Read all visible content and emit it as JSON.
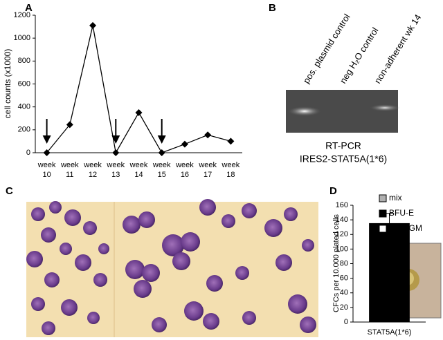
{
  "chart_data": [
    {
      "type": "line",
      "panel_label": "A",
      "y_label": "cell counts (x1000)",
      "x_tick_prefix": "week",
      "categories": [
        "10",
        "11",
        "12",
        "13",
        "14",
        "15",
        "16",
        "17",
        "18"
      ],
      "values": [
        0,
        245,
        1110,
        0,
        350,
        0,
        75,
        155,
        100
      ],
      "color": "#000000",
      "arrow_at": [
        "10",
        "13",
        "15"
      ],
      "ylim": [
        0,
        1200
      ],
      "yticks": [
        0,
        200,
        400,
        600,
        800,
        1000,
        1200
      ],
      "grid": false
    },
    {
      "type": "bar",
      "panel_label": "D",
      "y_label": "CFCs per 10.000 plated cells",
      "stacked": true,
      "categories": [
        "STAT5A(1*6)"
      ],
      "series": [
        {
          "name": "mix",
          "color": "#b0b0b0",
          "values": [
            0
          ]
        },
        {
          "name": "BFU-E",
          "color": "#000000",
          "values": [
            135
          ],
          "errors": [
            14
          ]
        },
        {
          "name": "CFU-GM",
          "color": "#ffffff",
          "values": [
            0
          ]
        }
      ],
      "ylim": [
        0,
        160
      ],
      "yticks": [
        0,
        20,
        40,
        60,
        80,
        100,
        120,
        140,
        160
      ],
      "grid": false,
      "legend": "top-right"
    }
  ],
  "gel": {
    "panel_label": "B",
    "lanes": [
      "pos. plasmid control",
      "neg H₂O control",
      "non-adherent wk 14"
    ],
    "caption": [
      "RT-PCR",
      "IRES2-STAT5A(1*6)"
    ]
  },
  "micrograph": {
    "panel_label": "C"
  }
}
